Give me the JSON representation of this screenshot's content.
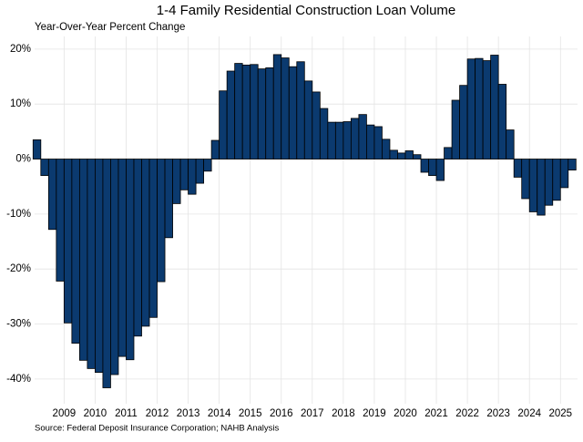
{
  "chart_data": {
    "type": "bar",
    "title": "1-4 Family Residential Construction Loan Volume",
    "subtitle": "Year-Over-Year Percent Change",
    "source": "Source: Federal Deposit Insurance Corporation; NAHB Analysis",
    "color": "#0b3a6f",
    "edge_color": "#000000",
    "grid": true,
    "x": [
      2008.125,
      2008.375,
      2008.625,
      2008.875,
      2009.125,
      2009.375,
      2009.625,
      2009.875,
      2010.125,
      2010.375,
      2010.625,
      2010.875,
      2011.125,
      2011.375,
      2011.625,
      2011.875,
      2012.125,
      2012.375,
      2012.625,
      2012.875,
      2013.125,
      2013.375,
      2013.625,
      2013.875,
      2014.125,
      2014.375,
      2014.625,
      2014.875,
      2015.125,
      2015.375,
      2015.625,
      2015.875,
      2016.125,
      2016.375,
      2016.625,
      2016.875,
      2017.125,
      2017.375,
      2017.625,
      2017.875,
      2018.125,
      2018.375,
      2018.625,
      2018.875,
      2019.125,
      2019.375,
      2019.625,
      2019.875,
      2020.125,
      2020.375,
      2020.625,
      2020.875,
      2021.125,
      2021.375,
      2021.625,
      2021.875,
      2022.125,
      2022.375,
      2022.625,
      2022.875,
      2023.125,
      2023.375,
      2023.625,
      2023.875,
      2024.125,
      2024.375,
      2024.625,
      2024.875,
      2025.125,
      2025.375
    ],
    "values": [
      3.5,
      -3,
      -12.8,
      -22.2,
      -29.8,
      -33.5,
      -36.6,
      -38.1,
      -38.8,
      -41.6,
      -39.2,
      -35.9,
      -36.5,
      -32.2,
      -30.4,
      -28.8,
      -22.3,
      -14.3,
      -8.1,
      -5.6,
      -6.4,
      -4.4,
      -2.2,
      3.4,
      12.4,
      16,
      17.4,
      17.1,
      17.2,
      16.4,
      16.6,
      19,
      18.4,
      16.8,
      17.7,
      14.2,
      12.2,
      9.2,
      6.7,
      6.7,
      6.8,
      7.4,
      8.1,
      6.2,
      5.9,
      3.6,
      1.6,
      1.1,
      1.5,
      0.8,
      -2.4,
      -3,
      -3.9,
      2.1,
      10.7,
      13.4,
      18.2,
      18.3,
      17.9,
      18.9,
      13.6,
      5.3,
      -3.3,
      -7.2,
      -9.6,
      -10.2,
      -8.4,
      -7.5,
      -5.2,
      -2
    ],
    "xlim": [
      2008.05,
      2025.55
    ],
    "xticks": [
      2009,
      2010,
      2011,
      2012,
      2013,
      2014,
      2015,
      2016,
      2017,
      2018,
      2019,
      2020,
      2021,
      2022,
      2023,
      2024,
      2025
    ],
    "ylim": [
      -44.5,
      22.3
    ],
    "yticks": [
      {
        "value": 20,
        "label": "20%"
      },
      {
        "value": 10,
        "label": "10%"
      },
      {
        "value": 0,
        "label": "0%"
      },
      {
        "value": -10,
        "label": "-10%"
      },
      {
        "value": -20,
        "label": "-20%"
      },
      {
        "value": -30,
        "label": "-30%"
      },
      {
        "value": -40,
        "label": "-40%"
      }
    ]
  }
}
